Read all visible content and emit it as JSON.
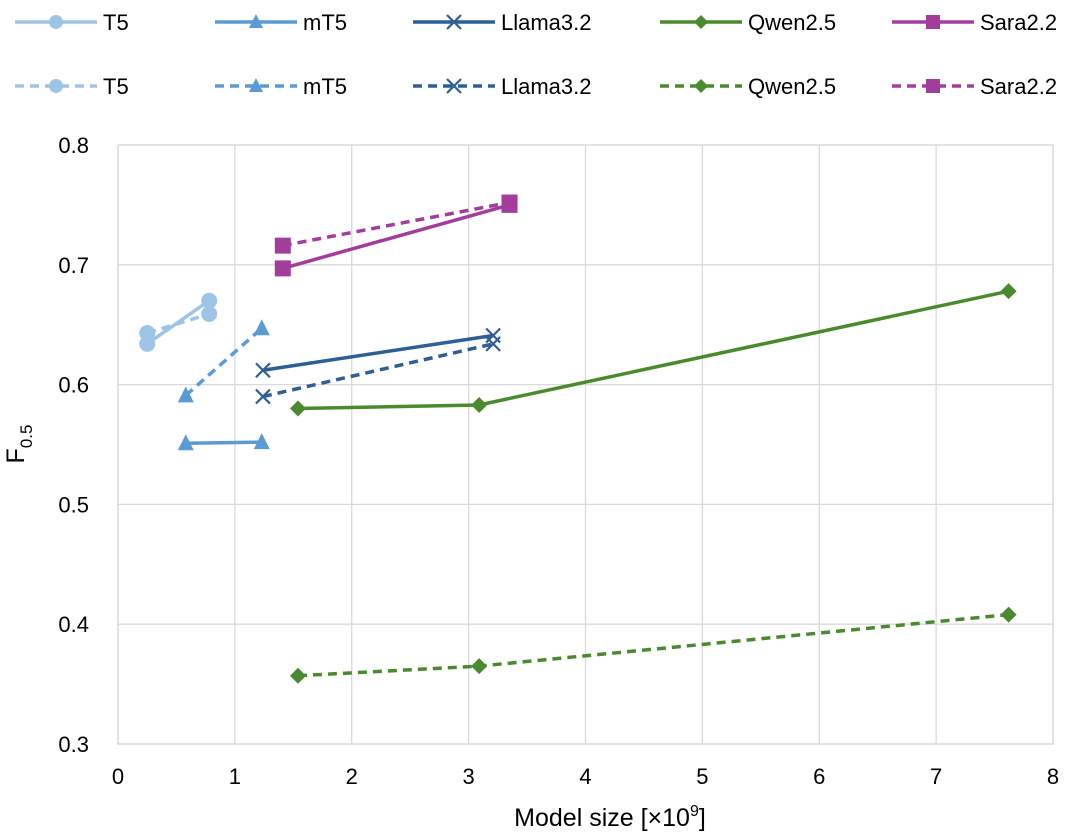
{
  "chart_data": {
    "type": "line",
    "title": "",
    "xlabel": "Model size [×10",
    "xlabel_exp": "9",
    "xlabel_close": "]",
    "ylabel_main": "F",
    "ylabel_sub": "0.5",
    "xlim": [
      0,
      8
    ],
    "ylim": [
      0.3,
      0.8
    ],
    "xticks": [
      0,
      1,
      2,
      3,
      4,
      5,
      6,
      7,
      8
    ],
    "yticks": [
      0.3,
      0.4,
      0.5,
      0.6,
      0.7,
      0.8
    ],
    "xtick_labels": [
      "0",
      "1",
      "2",
      "3",
      "4",
      "5",
      "6",
      "7",
      "8"
    ],
    "ytick_labels": [
      "0.3",
      "0.4",
      "0.5",
      "0.6",
      "0.7",
      "0.8"
    ],
    "grid": true,
    "legend_position": "top",
    "series": [
      {
        "name": "T5",
        "style": "solid",
        "marker": "circle",
        "color": "#9DC3E6",
        "x": [
          0.25,
          0.78
        ],
        "y": [
          0.634,
          0.67
        ]
      },
      {
        "name": "mT5",
        "style": "solid",
        "marker": "triangle",
        "color": "#5B9BD5",
        "x": [
          0.58,
          1.23
        ],
        "y": [
          0.551,
          0.552
        ]
      },
      {
        "name": "Llama3.2",
        "style": "solid",
        "marker": "x",
        "color": "#2E5E93",
        "x": [
          1.24,
          3.21
        ],
        "y": [
          0.612,
          0.641
        ]
      },
      {
        "name": "Qwen2.5",
        "style": "solid",
        "marker": "diamond",
        "color": "#4A8A2E",
        "x": [
          1.54,
          3.09,
          7.62
        ],
        "y": [
          0.58,
          0.583,
          0.678
        ]
      },
      {
        "name": "Sara2.2",
        "style": "solid",
        "marker": "square",
        "color": "#A23D9B",
        "x": [
          1.41,
          3.35
        ],
        "y": [
          0.697,
          0.75
        ]
      },
      {
        "name": "T5",
        "style": "dashed",
        "marker": "circle",
        "color": "#9DC3E6",
        "x": [
          0.25,
          0.78
        ],
        "y": [
          0.643,
          0.659
        ]
      },
      {
        "name": "mT5",
        "style": "dashed",
        "marker": "triangle",
        "color": "#5B9BD5",
        "x": [
          0.58,
          1.23
        ],
        "y": [
          0.591,
          0.647
        ]
      },
      {
        "name": "Llama3.2",
        "style": "dashed",
        "marker": "x",
        "color": "#2E5E93",
        "x": [
          1.24,
          3.21
        ],
        "y": [
          0.59,
          0.634
        ]
      },
      {
        "name": "Qwen2.5",
        "style": "dashed",
        "marker": "diamond",
        "color": "#4A8A2E",
        "x": [
          1.54,
          3.09,
          7.62
        ],
        "y": [
          0.357,
          0.365,
          0.408
        ]
      },
      {
        "name": "Sara2.2",
        "style": "dashed",
        "marker": "square",
        "color": "#A23D9B",
        "x": [
          1.41,
          3.35
        ],
        "y": [
          0.716,
          0.752
        ]
      }
    ]
  }
}
